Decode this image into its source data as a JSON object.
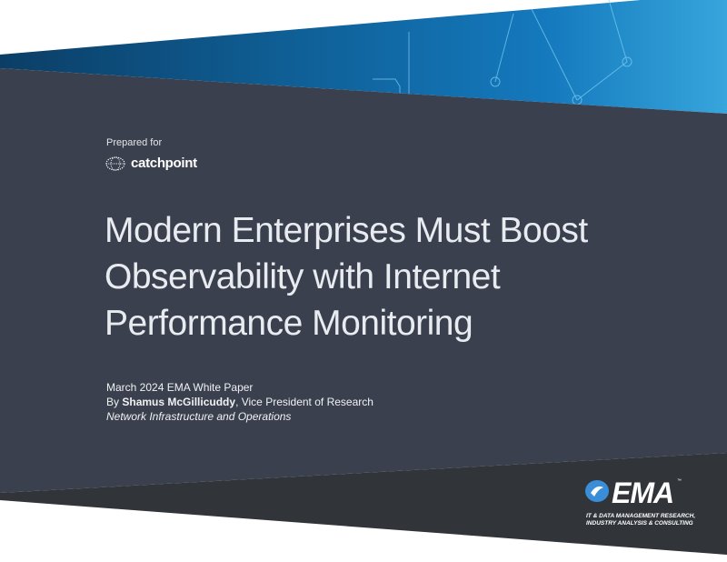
{
  "cover": {
    "prepared_for": "Prepared for",
    "client_logo": "catchpoint",
    "title_lines": [
      "Modern Enterprises Must Boost",
      "Observability with Internet",
      "Performance Monitoring"
    ],
    "date_type": "March 2024 EMA White Paper",
    "by": "By",
    "author": "Shamus McGillicuddy",
    "author_role": ", Vice President of Research",
    "practice": "Network Infrastructure and Operations"
  },
  "publisher": {
    "logo": "EMA",
    "trademark": "™",
    "tagline_lines": [
      "IT & DATA MANAGEMENT RESEARCH,",
      "INDUSTRY ANALYSIS & CONSULTING"
    ]
  },
  "colors": {
    "panel": "#3b404e",
    "footer": "#313438",
    "banner": "#0f6fb0",
    "ema_blue": "#3a8ed8"
  }
}
